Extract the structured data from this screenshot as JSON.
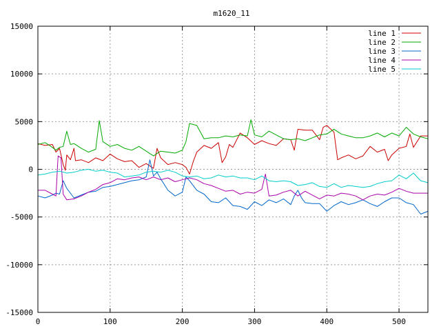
{
  "chart_data": {
    "type": "line",
    "title": "m1620_11",
    "xlabel": "",
    "ylabel": "",
    "xlim": [
      0,
      540
    ],
    "ylim": [
      -15000,
      15000
    ],
    "x_ticks": [
      0,
      100,
      200,
      300,
      400,
      500
    ],
    "y_ticks": [
      -15000,
      -10000,
      -5000,
      0,
      5000,
      10000,
      15000
    ],
    "grid": true,
    "legend_position": "top-right",
    "series": [
      {
        "name": "line 1",
        "color": "#cc0000",
        "points": [
          [
            0,
            2700
          ],
          [
            10,
            2500
          ],
          [
            20,
            2600
          ],
          [
            25,
            1800
          ],
          [
            30,
            2200
          ],
          [
            35,
            500
          ],
          [
            38,
            -100
          ],
          [
            40,
            1500
          ],
          [
            45,
            1000
          ],
          [
            50,
            2200
          ],
          [
            52,
            900
          ],
          [
            60,
            1000
          ],
          [
            70,
            700
          ],
          [
            80,
            1200
          ],
          [
            90,
            900
          ],
          [
            100,
            1600
          ],
          [
            110,
            1100
          ],
          [
            120,
            800
          ],
          [
            130,
            900
          ],
          [
            140,
            200
          ],
          [
            150,
            600
          ],
          [
            160,
            100
          ],
          [
            165,
            2200
          ],
          [
            170,
            1200
          ],
          [
            180,
            500
          ],
          [
            190,
            700
          ],
          [
            200,
            500
          ],
          [
            205,
            200
          ],
          [
            210,
            -500
          ],
          [
            215,
            800
          ],
          [
            220,
            1800
          ],
          [
            230,
            2500
          ],
          [
            240,
            2200
          ],
          [
            250,
            2800
          ],
          [
            255,
            700
          ],
          [
            260,
            1300
          ],
          [
            265,
            2600
          ],
          [
            270,
            2300
          ],
          [
            280,
            3800
          ],
          [
            290,
            3300
          ],
          [
            300,
            2600
          ],
          [
            310,
            3000
          ],
          [
            320,
            2700
          ],
          [
            330,
            2500
          ],
          [
            340,
            3200
          ],
          [
            350,
            3100
          ],
          [
            355,
            2000
          ],
          [
            360,
            4200
          ],
          [
            370,
            4100
          ],
          [
            380,
            4100
          ],
          [
            390,
            3100
          ],
          [
            395,
            4400
          ],
          [
            400,
            4600
          ],
          [
            410,
            3900
          ],
          [
            415,
            1000
          ],
          [
            420,
            1200
          ],
          [
            430,
            1500
          ],
          [
            440,
            1100
          ],
          [
            450,
            1400
          ],
          [
            460,
            2400
          ],
          [
            470,
            1800
          ],
          [
            480,
            2100
          ],
          [
            485,
            900
          ],
          [
            490,
            1500
          ],
          [
            500,
            2200
          ],
          [
            510,
            2400
          ],
          [
            515,
            3700
          ],
          [
            520,
            2300
          ],
          [
            530,
            3500
          ],
          [
            540,
            3500
          ]
        ]
      },
      {
        "name": "line 2",
        "color": "#00aa00",
        "points": [
          [
            0,
            2600
          ],
          [
            10,
            2800
          ],
          [
            20,
            2300
          ],
          [
            25,
            2000
          ],
          [
            30,
            2300
          ],
          [
            35,
            2400
          ],
          [
            40,
            4000
          ],
          [
            45,
            2600
          ],
          [
            50,
            2700
          ],
          [
            60,
            2200
          ],
          [
            70,
            1800
          ],
          [
            80,
            2100
          ],
          [
            85,
            5100
          ],
          [
            90,
            2900
          ],
          [
            100,
            2400
          ],
          [
            110,
            2600
          ],
          [
            120,
            2200
          ],
          [
            130,
            2000
          ],
          [
            140,
            2400
          ],
          [
            150,
            1900
          ],
          [
            160,
            1400
          ],
          [
            170,
            1900
          ],
          [
            180,
            1800
          ],
          [
            190,
            1700
          ],
          [
            200,
            2000
          ],
          [
            205,
            2900
          ],
          [
            210,
            4800
          ],
          [
            220,
            4600
          ],
          [
            230,
            3200
          ],
          [
            240,
            3300
          ],
          [
            250,
            3300
          ],
          [
            260,
            3500
          ],
          [
            270,
            3400
          ],
          [
            280,
            3600
          ],
          [
            290,
            3500
          ],
          [
            295,
            5200
          ],
          [
            300,
            3600
          ],
          [
            310,
            3400
          ],
          [
            320,
            4000
          ],
          [
            330,
            3600
          ],
          [
            340,
            3200
          ],
          [
            350,
            3100
          ],
          [
            360,
            3200
          ],
          [
            370,
            3000
          ],
          [
            380,
            3300
          ],
          [
            390,
            3600
          ],
          [
            400,
            3700
          ],
          [
            410,
            4200
          ],
          [
            420,
            3700
          ],
          [
            430,
            3500
          ],
          [
            440,
            3300
          ],
          [
            450,
            3300
          ],
          [
            460,
            3500
          ],
          [
            470,
            3800
          ],
          [
            480,
            3400
          ],
          [
            490,
            3800
          ],
          [
            500,
            3500
          ],
          [
            510,
            4400
          ],
          [
            520,
            3700
          ],
          [
            530,
            3400
          ],
          [
            540,
            3200
          ]
        ]
      },
      {
        "name": "line 3",
        "color": "#0066cc",
        "points": [
          [
            0,
            -2800
          ],
          [
            10,
            -3000
          ],
          [
            20,
            -2700
          ],
          [
            25,
            -2500
          ],
          [
            30,
            -2600
          ],
          [
            35,
            -1200
          ],
          [
            40,
            -2000
          ],
          [
            50,
            -3000
          ],
          [
            60,
            -2700
          ],
          [
            70,
            -2400
          ],
          [
            80,
            -2300
          ],
          [
            90,
            -1900
          ],
          [
            100,
            -1800
          ],
          [
            110,
            -1600
          ],
          [
            120,
            -1400
          ],
          [
            130,
            -1200
          ],
          [
            140,
            -1100
          ],
          [
            150,
            -800
          ],
          [
            155,
            1000
          ],
          [
            160,
            -700
          ],
          [
            165,
            -300
          ],
          [
            170,
            -1000
          ],
          [
            180,
            -2200
          ],
          [
            190,
            -2800
          ],
          [
            200,
            -2400
          ],
          [
            205,
            -800
          ],
          [
            210,
            -1200
          ],
          [
            220,
            -2200
          ],
          [
            230,
            -2600
          ],
          [
            240,
            -3400
          ],
          [
            250,
            -3500
          ],
          [
            260,
            -3000
          ],
          [
            270,
            -3800
          ],
          [
            280,
            -3900
          ],
          [
            290,
            -4200
          ],
          [
            300,
            -3400
          ],
          [
            310,
            -3800
          ],
          [
            320,
            -3200
          ],
          [
            330,
            -3500
          ],
          [
            340,
            -3100
          ],
          [
            350,
            -3700
          ],
          [
            355,
            -2800
          ],
          [
            360,
            -2200
          ],
          [
            365,
            -3000
          ],
          [
            370,
            -3500
          ],
          [
            380,
            -3600
          ],
          [
            390,
            -3600
          ],
          [
            400,
            -4400
          ],
          [
            410,
            -3800
          ],
          [
            420,
            -3400
          ],
          [
            430,
            -3700
          ],
          [
            440,
            -3500
          ],
          [
            450,
            -3200
          ],
          [
            460,
            -3600
          ],
          [
            470,
            -3900
          ],
          [
            480,
            -3400
          ],
          [
            490,
            -3000
          ],
          [
            500,
            -3000
          ],
          [
            510,
            -3500
          ],
          [
            520,
            -3700
          ],
          [
            530,
            -4700
          ],
          [
            540,
            -4400
          ]
        ]
      },
      {
        "name": "line 4",
        "color": "#aa00aa",
        "points": [
          [
            0,
            -2200
          ],
          [
            10,
            -2200
          ],
          [
            20,
            -2600
          ],
          [
            25,
            -2800
          ],
          [
            28,
            1400
          ],
          [
            32,
            1200
          ],
          [
            35,
            -2600
          ],
          [
            40,
            -3200
          ],
          [
            50,
            -3100
          ],
          [
            60,
            -2800
          ],
          [
            70,
            -2400
          ],
          [
            80,
            -2100
          ],
          [
            90,
            -1600
          ],
          [
            100,
            -1400
          ],
          [
            110,
            -1000
          ],
          [
            120,
            -1100
          ],
          [
            130,
            -900
          ],
          [
            140,
            -800
          ],
          [
            150,
            -1100
          ],
          [
            160,
            -800
          ],
          [
            170,
            -1100
          ],
          [
            180,
            -900
          ],
          [
            190,
            -1300
          ],
          [
            200,
            -1100
          ],
          [
            210,
            -900
          ],
          [
            220,
            -1100
          ],
          [
            230,
            -1500
          ],
          [
            240,
            -1700
          ],
          [
            250,
            -2000
          ],
          [
            260,
            -2300
          ],
          [
            270,
            -2200
          ],
          [
            280,
            -2600
          ],
          [
            290,
            -2400
          ],
          [
            300,
            -2500
          ],
          [
            310,
            -2100
          ],
          [
            315,
            -500
          ],
          [
            320,
            -2800
          ],
          [
            330,
            -2700
          ],
          [
            340,
            -2400
          ],
          [
            350,
            -2200
          ],
          [
            360,
            -2800
          ],
          [
            370,
            -2300
          ],
          [
            380,
            -2700
          ],
          [
            390,
            -3100
          ],
          [
            400,
            -2700
          ],
          [
            410,
            -2800
          ],
          [
            420,
            -2500
          ],
          [
            430,
            -2600
          ],
          [
            440,
            -2800
          ],
          [
            450,
            -3200
          ],
          [
            460,
            -2800
          ],
          [
            470,
            -2600
          ],
          [
            480,
            -2700
          ],
          [
            490,
            -2400
          ],
          [
            500,
            -2000
          ],
          [
            510,
            -2300
          ],
          [
            520,
            -2500
          ],
          [
            530,
            -2500
          ],
          [
            540,
            -2500
          ]
        ]
      },
      {
        "name": "line 5",
        "color": "#00cccc",
        "points": [
          [
            0,
            -600
          ],
          [
            10,
            -500
          ],
          [
            20,
            -300
          ],
          [
            30,
            -200
          ],
          [
            40,
            -400
          ],
          [
            50,
            -300
          ],
          [
            60,
            -100
          ],
          [
            70,
            0
          ],
          [
            80,
            -200
          ],
          [
            90,
            -100
          ],
          [
            100,
            -300
          ],
          [
            110,
            -400
          ],
          [
            120,
            -800
          ],
          [
            130,
            -700
          ],
          [
            140,
            -600
          ],
          [
            150,
            -300
          ],
          [
            160,
            -200
          ],
          [
            170,
            -300
          ],
          [
            180,
            -100
          ],
          [
            190,
            -300
          ],
          [
            200,
            -700
          ],
          [
            210,
            -800
          ],
          [
            220,
            -700
          ],
          [
            230,
            -1000
          ],
          [
            240,
            -900
          ],
          [
            250,
            -600
          ],
          [
            260,
            -800
          ],
          [
            270,
            -700
          ],
          [
            280,
            -900
          ],
          [
            290,
            -900
          ],
          [
            300,
            -1100
          ],
          [
            310,
            -700
          ],
          [
            320,
            -1200
          ],
          [
            330,
            -1300
          ],
          [
            340,
            -1200
          ],
          [
            350,
            -1300
          ],
          [
            360,
            -1700
          ],
          [
            370,
            -1600
          ],
          [
            380,
            -1400
          ],
          [
            390,
            -1800
          ],
          [
            400,
            -1900
          ],
          [
            410,
            -1500
          ],
          [
            420,
            -1900
          ],
          [
            430,
            -1700
          ],
          [
            440,
            -1800
          ],
          [
            450,
            -1900
          ],
          [
            460,
            -1800
          ],
          [
            470,
            -1500
          ],
          [
            480,
            -1300
          ],
          [
            490,
            -1200
          ],
          [
            500,
            -600
          ],
          [
            510,
            -1000
          ],
          [
            520,
            -400
          ],
          [
            530,
            -1200
          ],
          [
            540,
            -1400
          ]
        ]
      }
    ]
  }
}
